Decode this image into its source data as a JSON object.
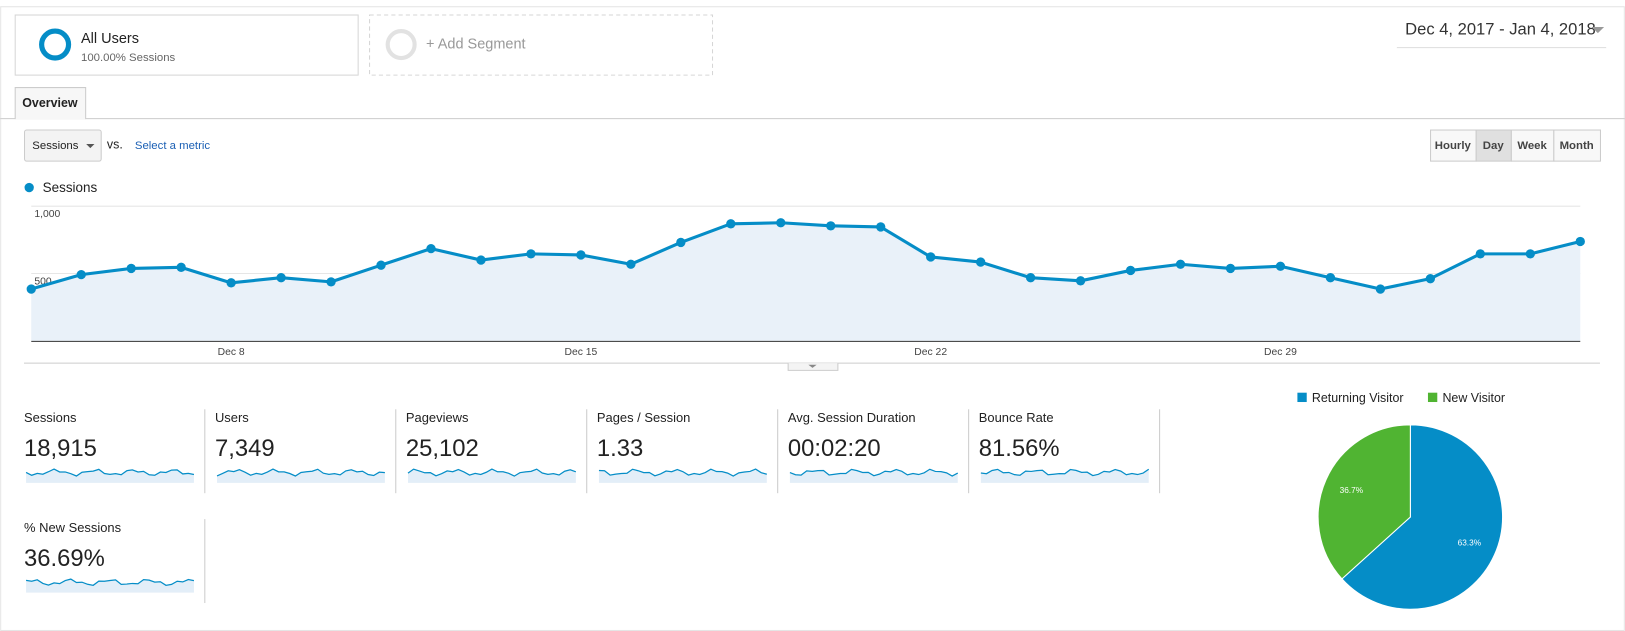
{
  "segments": [
    {
      "name": "All Users",
      "detail": "100.00% Sessions"
    },
    {
      "name": "+ Add Segment"
    }
  ],
  "date_range": "Dec 4, 2017 - Jan 4, 2018",
  "tabs": [
    "Overview"
  ],
  "metric_picker": {
    "selected": "Sessions",
    "vs": "vs.",
    "link": "Select a metric"
  },
  "granularity": {
    "options": [
      "Hourly",
      "Day",
      "Week",
      "Month"
    ],
    "active": "Day"
  },
  "chart_data": [
    {
      "type": "line",
      "series": [
        {
          "name": "Sessions",
          "color": "#058dc7",
          "values": [
            385,
            492,
            538,
            546,
            431,
            469,
            438,
            562,
            685,
            600,
            646,
            638,
            569,
            731,
            869,
            877,
            854,
            846,
            623,
            585,
            469,
            446,
            523,
            569,
            538,
            554,
            469,
            385,
            462,
            646,
            646,
            738
          ]
        }
      ],
      "categories": [
        null,
        null,
        null,
        null,
        "Dec 8",
        null,
        null,
        null,
        null,
        null,
        null,
        "Dec 15",
        null,
        null,
        null,
        null,
        null,
        null,
        "Dec 22",
        null,
        null,
        null,
        null,
        null,
        null,
        "Dec 29",
        null,
        null,
        null,
        null,
        null,
        null
      ],
      "ylim": [
        0,
        1000
      ],
      "yticks": [
        500,
        {
          "value": 1000,
          "label": "1,000"
        }
      ],
      "grid": true,
      "fill": true
    },
    {
      "type": "pie",
      "categories": [
        "Returning Visitor",
        "New Visitor"
      ],
      "values": [
        63.3,
        36.7
      ],
      "value_labels": [
        "63.3%",
        "36.7%"
      ],
      "colors": [
        "#058dc7",
        "#50b432"
      ],
      "legend": "top"
    }
  ],
  "metrics": [
    {
      "label": "Sessions",
      "value": "18,915"
    },
    {
      "label": "Users",
      "value": "7,349"
    },
    {
      "label": "Pageviews",
      "value": "25,102"
    },
    {
      "label": "Pages / Session",
      "value": "1.33"
    },
    {
      "label": "Avg. Session Duration",
      "value": "00:02:20"
    },
    {
      "label": "Bounce Rate",
      "value": "81.56%"
    },
    {
      "label": "% New Sessions",
      "value": "36.69%"
    }
  ]
}
